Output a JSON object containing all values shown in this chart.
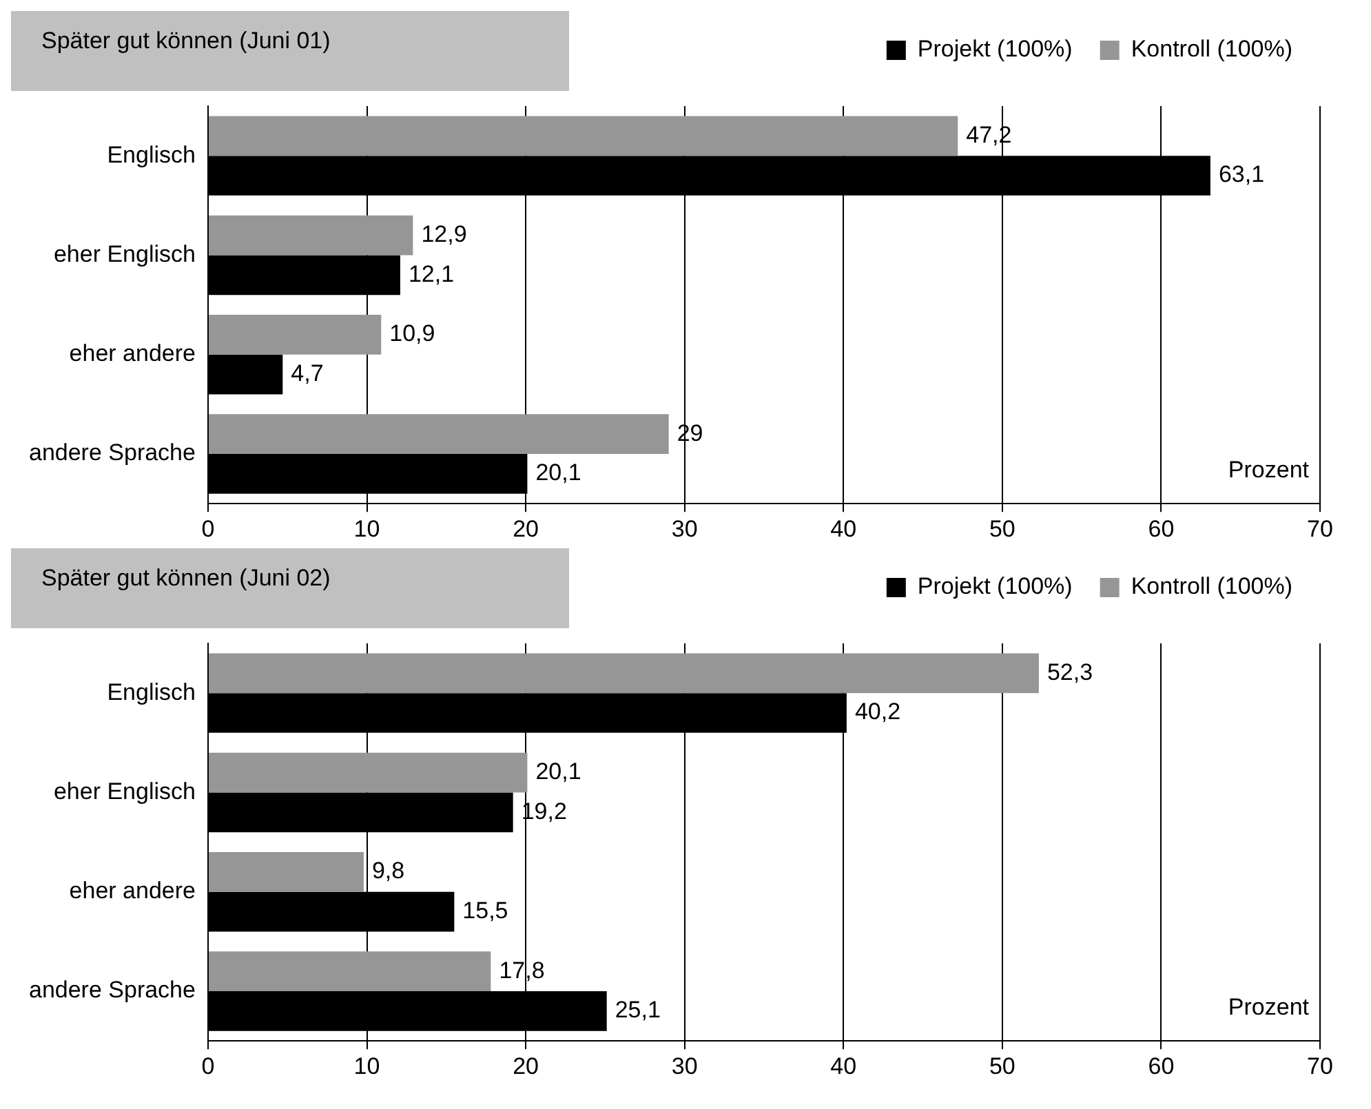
{
  "chart_data": [
    {
      "type": "bar",
      "orientation": "horizontal",
      "title": "Später gut können (Juni 01)",
      "xlabel": "Prozent",
      "categories": [
        "Englisch",
        "eher Englisch",
        "eher andere",
        "andere Sprache"
      ],
      "series": [
        {
          "name": "Projekt (100%)",
          "color": "#000000",
          "values": [
            63.1,
            12.1,
            4.7,
            20.1
          ],
          "value_labels": [
            "63,1",
            "12,1",
            "4,7",
            "20,1"
          ]
        },
        {
          "name": "Kontroll (100%)",
          "color": "#969696",
          "values": [
            47.2,
            12.9,
            10.9,
            29
          ],
          "value_labels": [
            "47,2",
            "12,9",
            "10,9",
            "29"
          ]
        }
      ],
      "xlim": [
        0,
        70
      ],
      "xticks": [
        0,
        10,
        20,
        30,
        40,
        50,
        60,
        70
      ],
      "grid": "x",
      "legend": "top right"
    },
    {
      "type": "bar",
      "orientation": "horizontal",
      "title": "Später gut können (Juni 02)",
      "xlabel": "Prozent",
      "categories": [
        "Englisch",
        "eher Englisch",
        "eher andere",
        "andere Sprache"
      ],
      "series": [
        {
          "name": "Projekt (100%)",
          "color": "#000000",
          "values": [
            40.2,
            19.2,
            15.5,
            25.1
          ],
          "value_labels": [
            "40,2",
            "19,2",
            "15,5",
            "25,1"
          ]
        },
        {
          "name": "Kontroll (100%)",
          "color": "#969696",
          "values": [
            52.3,
            20.1,
            9.8,
            17.8
          ],
          "value_labels": [
            "52,3",
            "20,1",
            "9,8",
            "17,8"
          ]
        }
      ],
      "xlim": [
        0,
        70
      ],
      "xticks": [
        0,
        10,
        20,
        30,
        40,
        50,
        60,
        70
      ],
      "grid": "x",
      "legend": "top right"
    }
  ]
}
